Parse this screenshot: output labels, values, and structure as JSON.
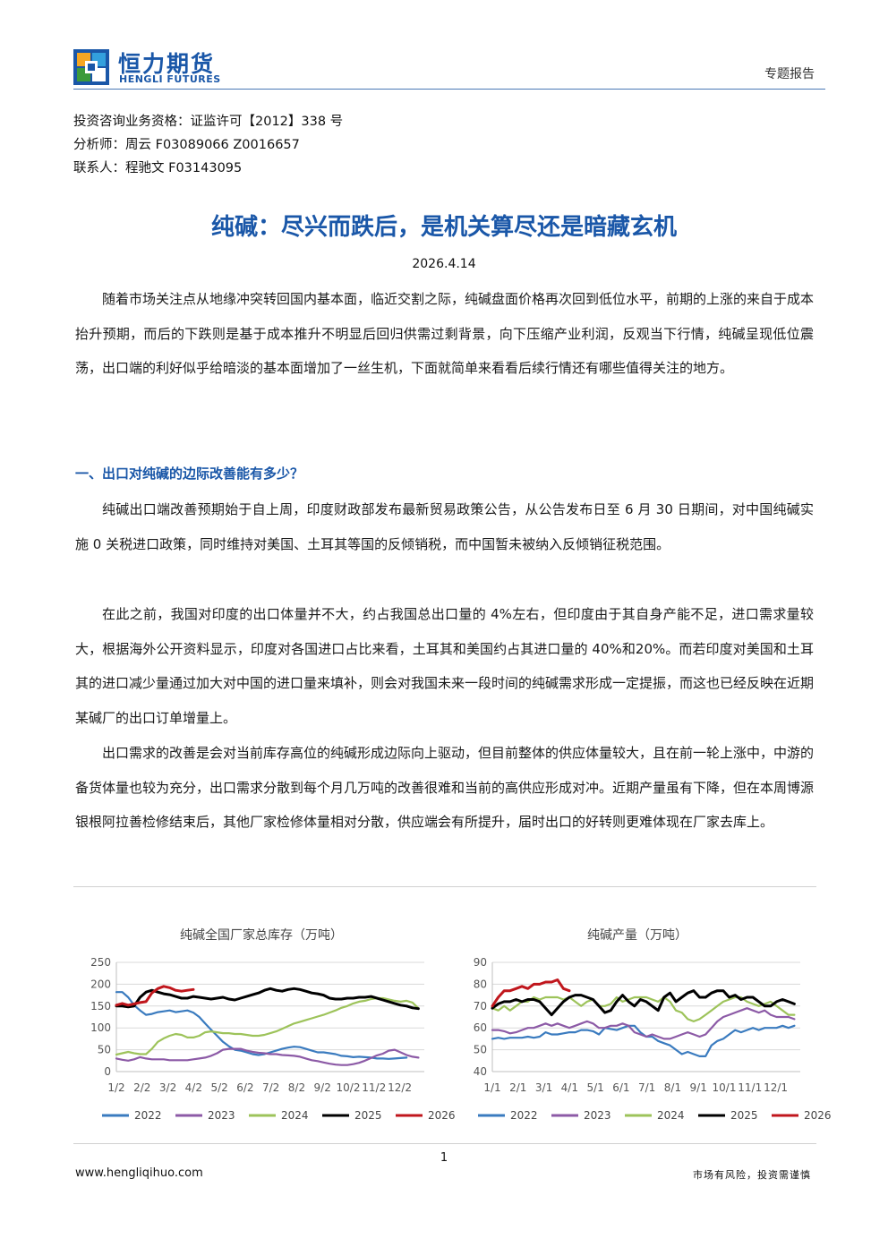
{
  "header": {
    "logo_cn": "恒力期货",
    "logo_en": "HENGLI FUTURES",
    "doc_type": "专题报告",
    "brand_color": "#1a57a8"
  },
  "meta": {
    "qualification": "投资咨询业务资格：证监许可【2012】338 号",
    "analyst": "分析师：周云 F03089066 Z0016657",
    "contact": "联系人：程驰文 F03143095"
  },
  "title": "纯碱：尽兴而跌后，是机关算尽还是暗藏玄机",
  "date": "2026.4.14",
  "intro": "随着市场关注点从地缘冲突转回国内基本面，临近交割之际，纯碱盘面价格再次回到低位水平，前期的上涨的来自于成本抬升预期，而后的下跌则是基于成本推升不明显后回归供需过剩背景，向下压缩产业利润，反观当下行情，纯碱呈现低位震荡，出口端的利好似乎给暗淡的基本面增加了一丝生机，下面就简单来看看后续行情还有哪些值得关注的地方。",
  "section1": {
    "heading": "一、出口对纯碱的边际改善能有多少？",
    "p1": "纯碱出口端改善预期始于自上周，印度财政部发布最新贸易政策公告，从公告发布日至 6 月 30 日期间，对中国纯碱实施 0 关税进口政策，同时维持对美国、土耳其等国的反倾销税，而中国暂未被纳入反倾销征税范围。",
    "p2": "在此之前，我国对印度的出口体量并不大，约占我国总出口量的 4%左右，但印度由于其自身产能不足，进口需求量较大，根据海外公开资料显示，印度对各国进口占比来看，土耳其和美国约占其进口量的 40%和20%。而若印度对美国和土耳其的进口减少量通过加大对中国的进口量来填补，则会对我国未来一段时间的纯碱需求形成一定提振，而这也已经反映在近期某碱厂的出口订单增量上。",
    "p3": "出口需求的改善是会对当前库存高位的纯碱形成边际向上驱动，但目前整体的供应体量较大，且在前一轮上涨中，中游的备货体量也较为充分，出口需求分散到每个月几万吨的改善很难和当前的高供应形成对冲。近期产量虽有下降，但在本周博源银根阿拉善检修结束后，其他厂家检修体量相对分散，供应端会有所提升，届时出口的好转则更难体现在厂家去库上。"
  },
  "chart_data": [
    {
      "type": "line",
      "title": "纯碱全国厂家总库存（万吨）",
      "ylim": [
        0,
        250
      ],
      "yticks": [
        0,
        50,
        100,
        150,
        200,
        250
      ],
      "xtick_labels": [
        "1/2",
        "2/2",
        "3/2",
        "4/2",
        "5/2",
        "6/2",
        "7/2",
        "8/2",
        "9/2",
        "10/2",
        "11/2",
        "12/2"
      ],
      "x_unit": "week of year",
      "xlim": [
        1,
        53
      ],
      "grid": true,
      "legend_position": "bottom",
      "series": [
        {
          "name": "2022",
          "color": "#3a7bbf",
          "values": [
            182,
            182,
            170,
            152,
            140,
            130,
            132,
            136,
            138,
            140,
            136,
            138,
            140,
            135,
            125,
            110,
            96,
            82,
            68,
            58,
            50,
            48,
            44,
            40,
            38,
            40,
            44,
            48,
            52,
            55,
            57,
            56,
            52,
            48,
            44,
            44,
            42,
            40,
            36,
            35,
            33,
            34,
            33,
            32,
            30,
            30,
            29,
            30,
            31,
            32
          ]
        },
        {
          "name": "2023",
          "color": "#8c5aa6",
          "values": [
            30,
            27,
            25,
            28,
            33,
            30,
            28,
            28,
            28,
            26,
            26,
            26,
            26,
            28,
            30,
            32,
            36,
            42,
            50,
            52,
            52,
            52,
            48,
            45,
            43,
            42,
            40,
            40,
            38,
            37,
            36,
            34,
            30,
            26,
            24,
            21,
            18,
            16,
            15,
            15,
            17,
            20,
            25,
            31,
            37,
            41,
            48,
            50,
            44,
            38,
            34,
            32
          ]
        },
        {
          "name": "2024",
          "color": "#9dc35a",
          "values": [
            39,
            42,
            45,
            42,
            40,
            40,
            52,
            68,
            76,
            82,
            86,
            84,
            78,
            78,
            82,
            90,
            92,
            90,
            88,
            88,
            86,
            86,
            84,
            82,
            82,
            84,
            88,
            92,
            98,
            104,
            110,
            114,
            118,
            122,
            126,
            130,
            135,
            140,
            146,
            150,
            156,
            160,
            162,
            166,
            168,
            168,
            165,
            162,
            160,
            162,
            158,
            145
          ]
        },
        {
          "name": "2025",
          "color": "#000000",
          "values": [
            150,
            150,
            148,
            150,
            170,
            182,
            186,
            182,
            178,
            176,
            172,
            168,
            168,
            172,
            170,
            168,
            166,
            168,
            170,
            166,
            164,
            168,
            172,
            176,
            180,
            186,
            190,
            186,
            184,
            188,
            190,
            188,
            184,
            180,
            178,
            175,
            168,
            166,
            166,
            168,
            168,
            170,
            170,
            172,
            168,
            164,
            160,
            156,
            152,
            150,
            146,
            144
          ]
        },
        {
          "name": "2026",
          "color": "#c0161c",
          "values": [
            152,
            156,
            152,
            155,
            158,
            160,
            180,
            190,
            195,
            192,
            186,
            184,
            186,
            188
          ]
        }
      ]
    },
    {
      "type": "line",
      "title": "纯碱产量（万吨）",
      "ylim": [
        40,
        90
      ],
      "yticks": [
        40,
        50,
        60,
        70,
        80,
        90
      ],
      "xtick_labels": [
        "1/1",
        "2/1",
        "3/1",
        "4/1",
        "5/1",
        "6/1",
        "7/1",
        "8/1",
        "9/1",
        "10/1",
        "11/1",
        "12/1"
      ],
      "x_unit": "week of year",
      "xlim": [
        1,
        53
      ],
      "grid": true,
      "legend_position": "bottom",
      "series": [
        {
          "name": "2022",
          "color": "#3a7bbf",
          "values": [
            55,
            55.5,
            55,
            55.5,
            55.5,
            55.5,
            56,
            55.5,
            56,
            58,
            57,
            57,
            57.5,
            58,
            58,
            59,
            59,
            58.5,
            57,
            60,
            59.5,
            59,
            60,
            61,
            61,
            58,
            56,
            56,
            54,
            53,
            52,
            50,
            48,
            49,
            48,
            47,
            47,
            52,
            54,
            55,
            57,
            59,
            58,
            59,
            60,
            59,
            60,
            60,
            60,
            61,
            60,
            61
          ]
        },
        {
          "name": "2023",
          "color": "#8c5aa6",
          "values": [
            59,
            59,
            58.5,
            57.5,
            58,
            59,
            60,
            60,
            61,
            62,
            61,
            62,
            61,
            60,
            61,
            62,
            63,
            62,
            60,
            60,
            61,
            61,
            62,
            61,
            58,
            57,
            56,
            57,
            56,
            55,
            55,
            56,
            57,
            58,
            57,
            56,
            57,
            60,
            63,
            65,
            66,
            67,
            68,
            69,
            68,
            67,
            68,
            66,
            65,
            65,
            65,
            64
          ]
        },
        {
          "name": "2024",
          "color": "#9dc35a",
          "values": [
            69,
            68,
            70,
            68,
            70,
            72,
            72,
            74,
            73,
            74,
            74,
            74,
            73,
            74,
            72,
            70,
            72,
            73,
            70,
            70,
            71,
            74,
            72,
            73,
            74,
            74,
            74,
            73,
            72,
            74,
            72,
            68,
            67,
            64,
            63,
            64,
            66,
            68,
            70,
            72,
            73,
            74,
            74,
            72,
            71,
            70,
            71,
            72,
            70,
            68,
            66,
            66
          ]
        },
        {
          "name": "2025",
          "color": "#000000",
          "values": [
            69,
            71,
            72,
            72,
            73,
            72,
            73,
            73,
            72,
            69,
            66,
            69,
            72,
            74,
            75,
            75,
            74,
            73,
            70,
            67,
            68,
            72,
            75,
            72,
            70,
            73,
            72,
            70,
            68,
            74,
            76,
            72,
            74,
            76,
            77,
            74,
            74,
            76,
            77,
            77,
            74,
            75,
            73,
            74,
            74,
            72,
            70,
            70,
            72,
            73,
            72,
            71
          ]
        },
        {
          "name": "2026",
          "color": "#c0161c",
          "values": [
            70,
            74,
            77,
            77,
            78,
            79,
            78,
            80,
            80,
            81,
            81,
            82,
            78,
            77
          ]
        }
      ]
    }
  ],
  "page_number": "1",
  "footer": {
    "url": "www.hengliqihuo.com",
    "note": "市场有风险，投资需谨慎"
  }
}
